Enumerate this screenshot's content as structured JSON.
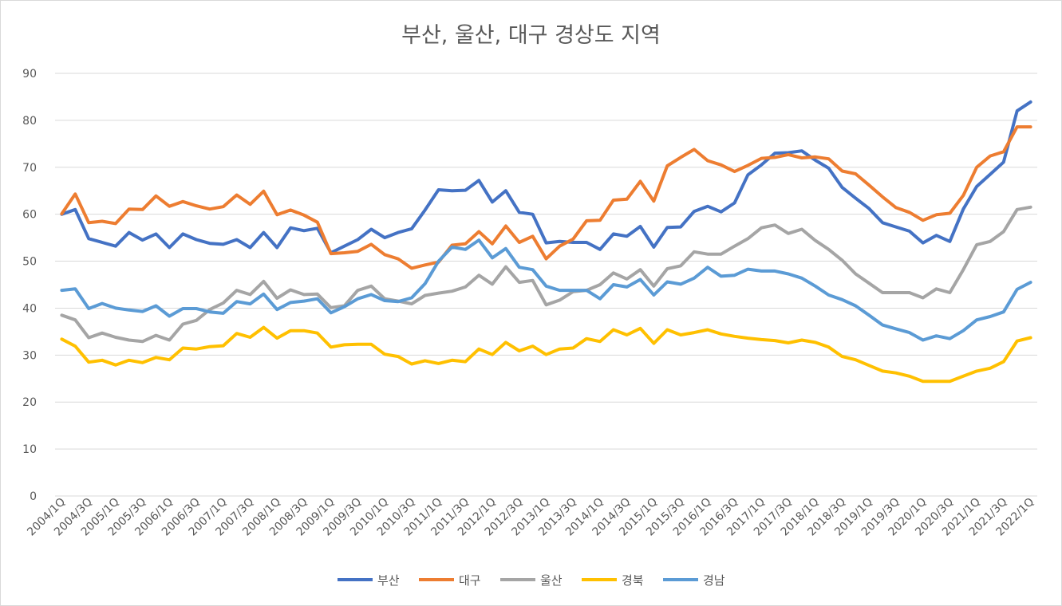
{
  "chart_data": {
    "type": "line",
    "title": "부산, 울산, 대구 경상도 지역",
    "xlabel": "",
    "ylabel": "",
    "ylim": [
      0,
      90
    ],
    "yticks": [
      0,
      10,
      20,
      30,
      40,
      50,
      60,
      70,
      80,
      90
    ],
    "grid": "horizontal",
    "legend": "bottom",
    "x": [
      "2004/1Q",
      "2004/2Q",
      "2004/3Q",
      "2004/4Q",
      "2005/1Q",
      "2005/2Q",
      "2005/3Q",
      "2005/4Q",
      "2006/1Q",
      "2006/2Q",
      "2006/3Q",
      "2006/4Q",
      "2007/1Q",
      "2007/2Q",
      "2007/3Q",
      "2007/4Q",
      "2008/1Q",
      "2008/2Q",
      "2008/3Q",
      "2008/4Q",
      "2009/1Q",
      "2009/2Q",
      "2009/3Q",
      "2009/4Q",
      "2010/1Q",
      "2010/2Q",
      "2010/3Q",
      "2010/4Q",
      "2011/1Q",
      "2011/2Q",
      "2011/3Q",
      "2011/4Q",
      "2012/1Q",
      "2012/2Q",
      "2012/3Q",
      "2012/4Q",
      "2013/1Q",
      "2013/2Q",
      "2013/3Q",
      "2013/4Q",
      "2014/1Q",
      "2014/2Q",
      "2014/3Q",
      "2014/4Q",
      "2015/1Q",
      "2015/2Q",
      "2015/3Q",
      "2015/4Q",
      "2016/1Q",
      "2016/2Q",
      "2016/3Q",
      "2016/4Q",
      "2017/1Q",
      "2017/2Q",
      "2017/3Q",
      "2017/4Q",
      "2018/1Q",
      "2018/2Q",
      "2018/3Q",
      "2018/4Q",
      "2019/1Q",
      "2019/2Q",
      "2019/3Q",
      "2019/4Q",
      "2020/1Q",
      "2020/2Q",
      "2020/3Q",
      "2020/4Q",
      "2021/1Q",
      "2021/2Q",
      "2021/3Q",
      "2021/4Q",
      "2022/1Q"
    ],
    "series": [
      {
        "name": "부산",
        "color": "#4472c4",
        "values": [
          60,
          61,
          54.8,
          54,
          53.2,
          56.1,
          54.5,
          55.8,
          52.9,
          55.8,
          54.6,
          53.8,
          53.6,
          54.6,
          52.9,
          56.1,
          52.9,
          57.1,
          56.5,
          57,
          51.8,
          53.2,
          54.6,
          56.8,
          55,
          56.1,
          56.9,
          60.9,
          65.2,
          65,
          65.1,
          67.2,
          62.6,
          65,
          60.4,
          60,
          53.9,
          54.2,
          54,
          54,
          52.5,
          55.8,
          55.3,
          57.4,
          53,
          57.2,
          57.3,
          60.6,
          61.7,
          60.5,
          62.4,
          68.4,
          70.5,
          73,
          73.1,
          73.5,
          71.5,
          69.8,
          65.7,
          63.4,
          61.2,
          58.2,
          57.3,
          56.4,
          53.9,
          55.5,
          54.2,
          61.1,
          65.9,
          68.5,
          71.1,
          82,
          83.9
        ]
      },
      {
        "name": "대구",
        "color": "#ed7d31",
        "values": [
          60.1,
          64.3,
          58.2,
          58.5,
          58,
          61.1,
          61,
          63.9,
          61.7,
          62.7,
          61.8,
          61.1,
          61.6,
          64.1,
          62.1,
          64.9,
          59.9,
          60.9,
          59.8,
          58.3,
          51.6,
          51.8,
          52.1,
          53.6,
          51.4,
          50.5,
          48.5,
          49.2,
          49.8,
          53.4,
          53.7,
          56.3,
          53.7,
          57.5,
          54,
          55.3,
          50.5,
          53.2,
          54.7,
          58.6,
          58.7,
          63,
          63.2,
          67,
          62.8,
          70.3,
          72.1,
          73.8,
          71.4,
          70.5,
          69.1,
          70.4,
          71.9,
          72.1,
          72.7,
          72,
          72.2,
          71.8,
          69.2,
          68.6,
          66.2,
          63.7,
          61.4,
          60.4,
          58.7,
          59.9,
          60.2,
          64,
          70,
          72.4,
          73.3,
          78.6,
          78.6
        ]
      },
      {
        "name": "울산",
        "color": "#a5a5a5",
        "values": [
          38.5,
          37.5,
          33.7,
          34.7,
          33.8,
          33.2,
          32.9,
          34.2,
          33.2,
          36.6,
          37.4,
          39.7,
          41.1,
          43.8,
          42.9,
          45.7,
          42.1,
          43.9,
          42.9,
          43,
          40.1,
          40.5,
          43.8,
          44.7,
          42,
          41.5,
          40.9,
          42.7,
          43.2,
          43.6,
          44.5,
          47,
          45.1,
          48.8,
          45.5,
          45.9,
          40.7,
          41.7,
          43.5,
          43.8,
          45,
          47.5,
          46.2,
          48.2,
          44.7,
          48.4,
          49,
          52,
          51.5,
          51.5,
          53.2,
          54.8,
          57.1,
          57.7,
          55.9,
          56.8,
          54.4,
          52.5,
          50.2,
          47.3,
          45.3,
          43.3,
          43.3,
          43.3,
          42.2,
          44.1,
          43.3,
          48.2,
          53.5,
          54.2,
          56.3,
          61,
          61.5
        ]
      },
      {
        "name": "경북",
        "color": "#ffc000",
        "values": [
          33.4,
          31.9,
          28.5,
          28.9,
          27.9,
          28.9,
          28.4,
          29.5,
          29,
          31.5,
          31.3,
          31.8,
          32,
          34.6,
          33.8,
          35.9,
          33.6,
          35.2,
          35.2,
          34.7,
          31.7,
          32.2,
          32.3,
          32.3,
          30.2,
          29.7,
          28.1,
          28.8,
          28.2,
          28.9,
          28.6,
          31.3,
          30.1,
          32.7,
          30.9,
          31.9,
          30.1,
          31.3,
          31.5,
          33.5,
          32.9,
          35.4,
          34.3,
          35.7,
          32.5,
          35.4,
          34.3,
          34.8,
          35.4,
          34.5,
          34,
          33.6,
          33.3,
          33.1,
          32.6,
          33.2,
          32.7,
          31.7,
          29.7,
          29,
          27.8,
          26.6,
          26.2,
          25.5,
          24.4,
          24.4,
          24.4,
          25.5,
          26.6,
          27.2,
          28.6,
          33,
          33.7
        ]
      },
      {
        "name": "경남",
        "color": "#5b9bd5",
        "values": [
          43.8,
          44.1,
          39.9,
          41,
          40,
          39.6,
          39.3,
          40.5,
          38.3,
          39.9,
          39.9,
          39.2,
          38.9,
          41.4,
          40.9,
          43,
          39.7,
          41.2,
          41.5,
          42,
          39,
          40.3,
          42,
          42.9,
          41.6,
          41.4,
          42.2,
          45.2,
          50,
          53,
          52.5,
          54.5,
          50.7,
          52.7,
          48.7,
          48.2,
          44.7,
          43.8,
          43.8,
          43.8,
          42,
          45,
          44.5,
          46.1,
          42.8,
          45.6,
          45.1,
          46.4,
          48.7,
          46.8,
          47,
          48.3,
          47.9,
          47.9,
          47.3,
          46.4,
          44.7,
          42.8,
          41.8,
          40.5,
          38.5,
          36.4,
          35.6,
          34.8,
          33.2,
          34.1,
          33.5,
          35.2,
          37.5,
          38.2,
          39.2,
          44,
          45.5
        ]
      }
    ]
  }
}
